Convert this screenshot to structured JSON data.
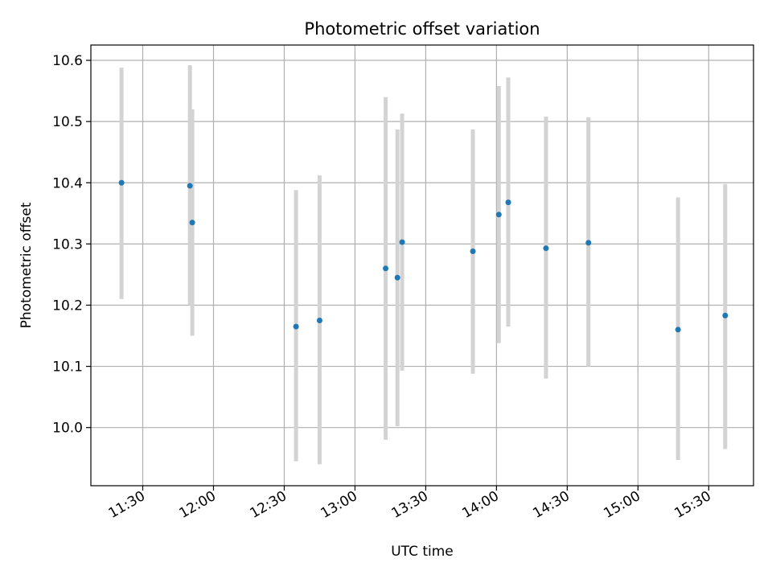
{
  "chart_data": {
    "type": "scatter",
    "title": "Photometric offset variation",
    "xlabel": "UTC time",
    "ylabel": "Photometric offset",
    "xlim": [
      "11:08",
      "15:49"
    ],
    "ylim": [
      9.905,
      10.625
    ],
    "grid": true,
    "x_ticks": [
      "11:30",
      "12:00",
      "12:30",
      "13:00",
      "13:30",
      "14:00",
      "14:30",
      "15:00",
      "15:30"
    ],
    "y_ticks": [
      10.0,
      10.1,
      10.2,
      10.3,
      10.4,
      10.5,
      10.6
    ],
    "colors": {
      "point": "#1f77b4",
      "error_bar": "#d3d3d3"
    },
    "series": [
      {
        "x": [
          "11:21",
          "11:50",
          "11:51",
          "12:35",
          "12:45",
          "13:13",
          "13:18",
          "13:20",
          "13:50",
          "14:01",
          "14:05",
          "14:21",
          "14:39",
          "15:17",
          "15:37"
        ],
        "y": [
          10.4,
          10.395,
          10.335,
          10.165,
          10.175,
          10.26,
          10.245,
          10.303,
          10.288,
          10.348,
          10.368,
          10.293,
          10.302,
          10.16,
          10.183
        ],
        "y_low": [
          10.21,
          10.2,
          10.15,
          9.945,
          9.94,
          9.98,
          10.002,
          10.093,
          10.088,
          10.138,
          10.165,
          10.08,
          10.1,
          9.947,
          9.965
        ],
        "y_high": [
          10.588,
          10.592,
          10.52,
          10.388,
          10.412,
          10.54,
          10.487,
          10.513,
          10.487,
          10.558,
          10.572,
          10.508,
          10.507,
          10.376,
          10.398
        ]
      }
    ]
  }
}
